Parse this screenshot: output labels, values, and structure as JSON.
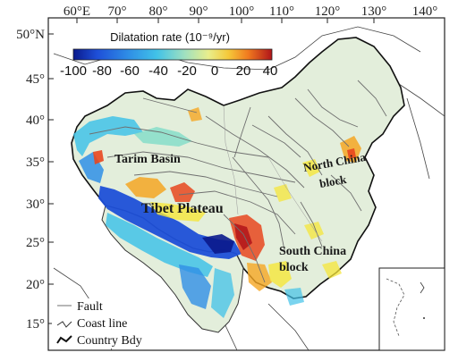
{
  "axes": {
    "lon_ticks": [
      "60°E",
      "70°",
      "80°",
      "90°",
      "100°",
      "110°",
      "120°",
      "130°",
      "140°"
    ],
    "lat_ticks": [
      "50°N",
      "45°",
      "40°",
      "35°",
      "30°",
      "25°",
      "20°",
      "15°"
    ]
  },
  "colorbar": {
    "title": "Dilatation rate (10⁻⁹/yr)",
    "ticks": [
      "-100",
      "-80",
      "-60",
      "-40",
      "-20",
      "0",
      "20",
      "40"
    ],
    "range": [
      -100,
      40
    ],
    "colors": [
      "#0a1a8c",
      "#1e4fd8",
      "#2f8fe6",
      "#41c2e8",
      "#7fdcc8",
      "#cfe9b0",
      "#f5e63a",
      "#f5a623",
      "#e8461e",
      "#b0141a"
    ]
  },
  "labels": {
    "tarim": "Tarim Basin",
    "tibet": "Tibet Plateau",
    "north_china": "North China",
    "north_china_2": "block",
    "south_china": "South China",
    "south_china_2": "block"
  },
  "legend": {
    "fault": "Fault",
    "coast": "Coast line",
    "country": "Country Bdy"
  },
  "colors": {
    "land_fill": "#e3eedb",
    "fault_line": "#6f6f6f",
    "border": "#111111"
  }
}
